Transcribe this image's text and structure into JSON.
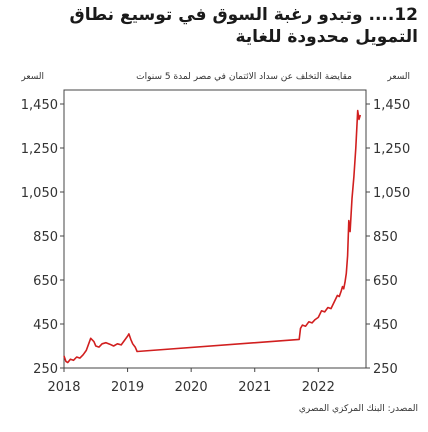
{
  "title_line1": "12.... وتبدو رغبة السوق في توسيع نطاق",
  "title_line2": "التمويل محدودة للغاية",
  "source": "المصدر: البنك المركزي المصري",
  "chart_data": {
    "type": "line",
    "title": "",
    "subtitle": "مقايضة التخلف عن سداد الائتمان في مصر لمدة 5 سنوات",
    "ylabel_left": "السعر",
    "ylabel_right": "السعر",
    "xlabel": "",
    "x_ticks": [
      "2018",
      "2019",
      "2020",
      "2021",
      "2022"
    ],
    "y_ticks": [
      250,
      450,
      650,
      850,
      1050,
      1250,
      1450
    ],
    "ylim": [
      250,
      1450
    ],
    "xlim": [
      2018.0,
      2022.75
    ],
    "grid": false,
    "series": [
      {
        "color": "#d11f1f",
        "x": [
          2018.0,
          2018.03,
          2018.06,
          2018.1,
          2018.15,
          2018.2,
          2018.25,
          2018.3,
          2018.35,
          2018.42,
          2018.47,
          2018.5,
          2018.55,
          2018.6,
          2018.66,
          2018.72,
          2018.78,
          2018.84,
          2018.9,
          2018.95,
          2019.0,
          2019.02,
          2019.05,
          2019.08,
          2019.12,
          2019.15,
          2021.7,
          2021.72,
          2021.75,
          2021.8,
          2021.85,
          2021.9,
          2021.95,
          2022.0,
          2022.05,
          2022.1,
          2022.15,
          2022.2,
          2022.25,
          2022.3,
          2022.33,
          2022.36,
          2022.38,
          2022.4,
          2022.42,
          2022.44,
          2022.46,
          2022.48,
          2022.5,
          2022.53,
          2022.56,
          2022.59,
          2022.62,
          2022.64,
          2022.66
        ],
        "values": [
          305,
          280,
          275,
          290,
          285,
          300,
          295,
          310,
          330,
          385,
          370,
          350,
          345,
          360,
          365,
          358,
          350,
          360,
          355,
          375,
          395,
          405,
          380,
          360,
          345,
          325,
          380,
          430,
          445,
          440,
          460,
          455,
          470,
          480,
          510,
          505,
          525,
          520,
          550,
          580,
          575,
          600,
          620,
          610,
          640,
          680,
          760,
          920,
          870,
          1020,
          1120,
          1250,
          1420,
          1380,
          1400
        ]
      }
    ]
  }
}
